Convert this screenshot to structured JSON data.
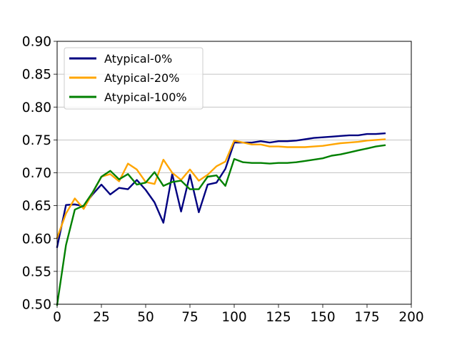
{
  "chart_data": {
    "type": "line",
    "title": "",
    "xlabel": "",
    "ylabel": "",
    "xlim": [
      0,
      200
    ],
    "ylim": [
      0.5,
      0.9
    ],
    "xticks": [
      "0",
      "25",
      "50",
      "75",
      "100",
      "125",
      "150",
      "175",
      "200"
    ],
    "yticks": [
      "0.50",
      "0.55",
      "0.60",
      "0.65",
      "0.70",
      "0.75",
      "0.80",
      "0.85",
      "0.90"
    ],
    "grid": "horizontal",
    "legend_position": "top-left",
    "series": [
      {
        "name": "Atypical-0%",
        "color": "#000080",
        "x": [
          0,
          5,
          10,
          15,
          20,
          25,
          30,
          35,
          40,
          45,
          50,
          55,
          60,
          65,
          70,
          75,
          80,
          85,
          90,
          95,
          100,
          105,
          110,
          115,
          120,
          125,
          130,
          135,
          140,
          145,
          150,
          155,
          160,
          165,
          170,
          175,
          180,
          185
        ],
        "y": [
          0.587,
          0.651,
          0.652,
          0.649,
          0.667,
          0.682,
          0.667,
          0.677,
          0.675,
          0.689,
          0.674,
          0.655,
          0.624,
          0.698,
          0.641,
          0.697,
          0.64,
          0.682,
          0.685,
          0.706,
          0.746,
          0.746,
          0.746,
          0.748,
          0.746,
          0.748,
          0.748,
          0.749,
          0.751,
          0.753,
          0.754,
          0.755,
          0.756,
          0.757,
          0.757,
          0.759,
          0.759,
          0.76
        ]
      },
      {
        "name": "Atypical-20%",
        "color": "#FFA500",
        "x": [
          0,
          5,
          10,
          15,
          20,
          25,
          30,
          35,
          40,
          45,
          50,
          55,
          60,
          65,
          70,
          75,
          80,
          85,
          90,
          95,
          100,
          105,
          110,
          115,
          120,
          125,
          130,
          135,
          140,
          145,
          150,
          155,
          160,
          165,
          170,
          175,
          180,
          185
        ],
        "y": [
          0.601,
          0.638,
          0.661,
          0.645,
          0.669,
          0.694,
          0.698,
          0.687,
          0.714,
          0.705,
          0.686,
          0.683,
          0.72,
          0.7,
          0.689,
          0.705,
          0.688,
          0.697,
          0.71,
          0.717,
          0.749,
          0.746,
          0.743,
          0.743,
          0.74,
          0.74,
          0.739,
          0.739,
          0.739,
          0.74,
          0.741,
          0.743,
          0.745,
          0.746,
          0.747,
          0.749,
          0.75,
          0.751
        ]
      },
      {
        "name": "Atypical-100%",
        "color": "#008000",
        "x": [
          0,
          5,
          10,
          15,
          20,
          25,
          30,
          35,
          40,
          45,
          50,
          55,
          60,
          65,
          70,
          75,
          80,
          85,
          90,
          95,
          100,
          105,
          110,
          115,
          120,
          125,
          130,
          135,
          140,
          145,
          150,
          155,
          160,
          165,
          170,
          175,
          180,
          185
        ],
        "y": [
          0.499,
          0.59,
          0.644,
          0.65,
          0.67,
          0.694,
          0.703,
          0.69,
          0.698,
          0.682,
          0.685,
          0.701,
          0.68,
          0.686,
          0.688,
          0.675,
          0.675,
          0.694,
          0.696,
          0.68,
          0.721,
          0.716,
          0.715,
          0.715,
          0.714,
          0.715,
          0.715,
          0.716,
          0.718,
          0.72,
          0.722,
          0.726,
          0.728,
          0.731,
          0.734,
          0.737,
          0.74,
          0.742
        ]
      }
    ]
  }
}
